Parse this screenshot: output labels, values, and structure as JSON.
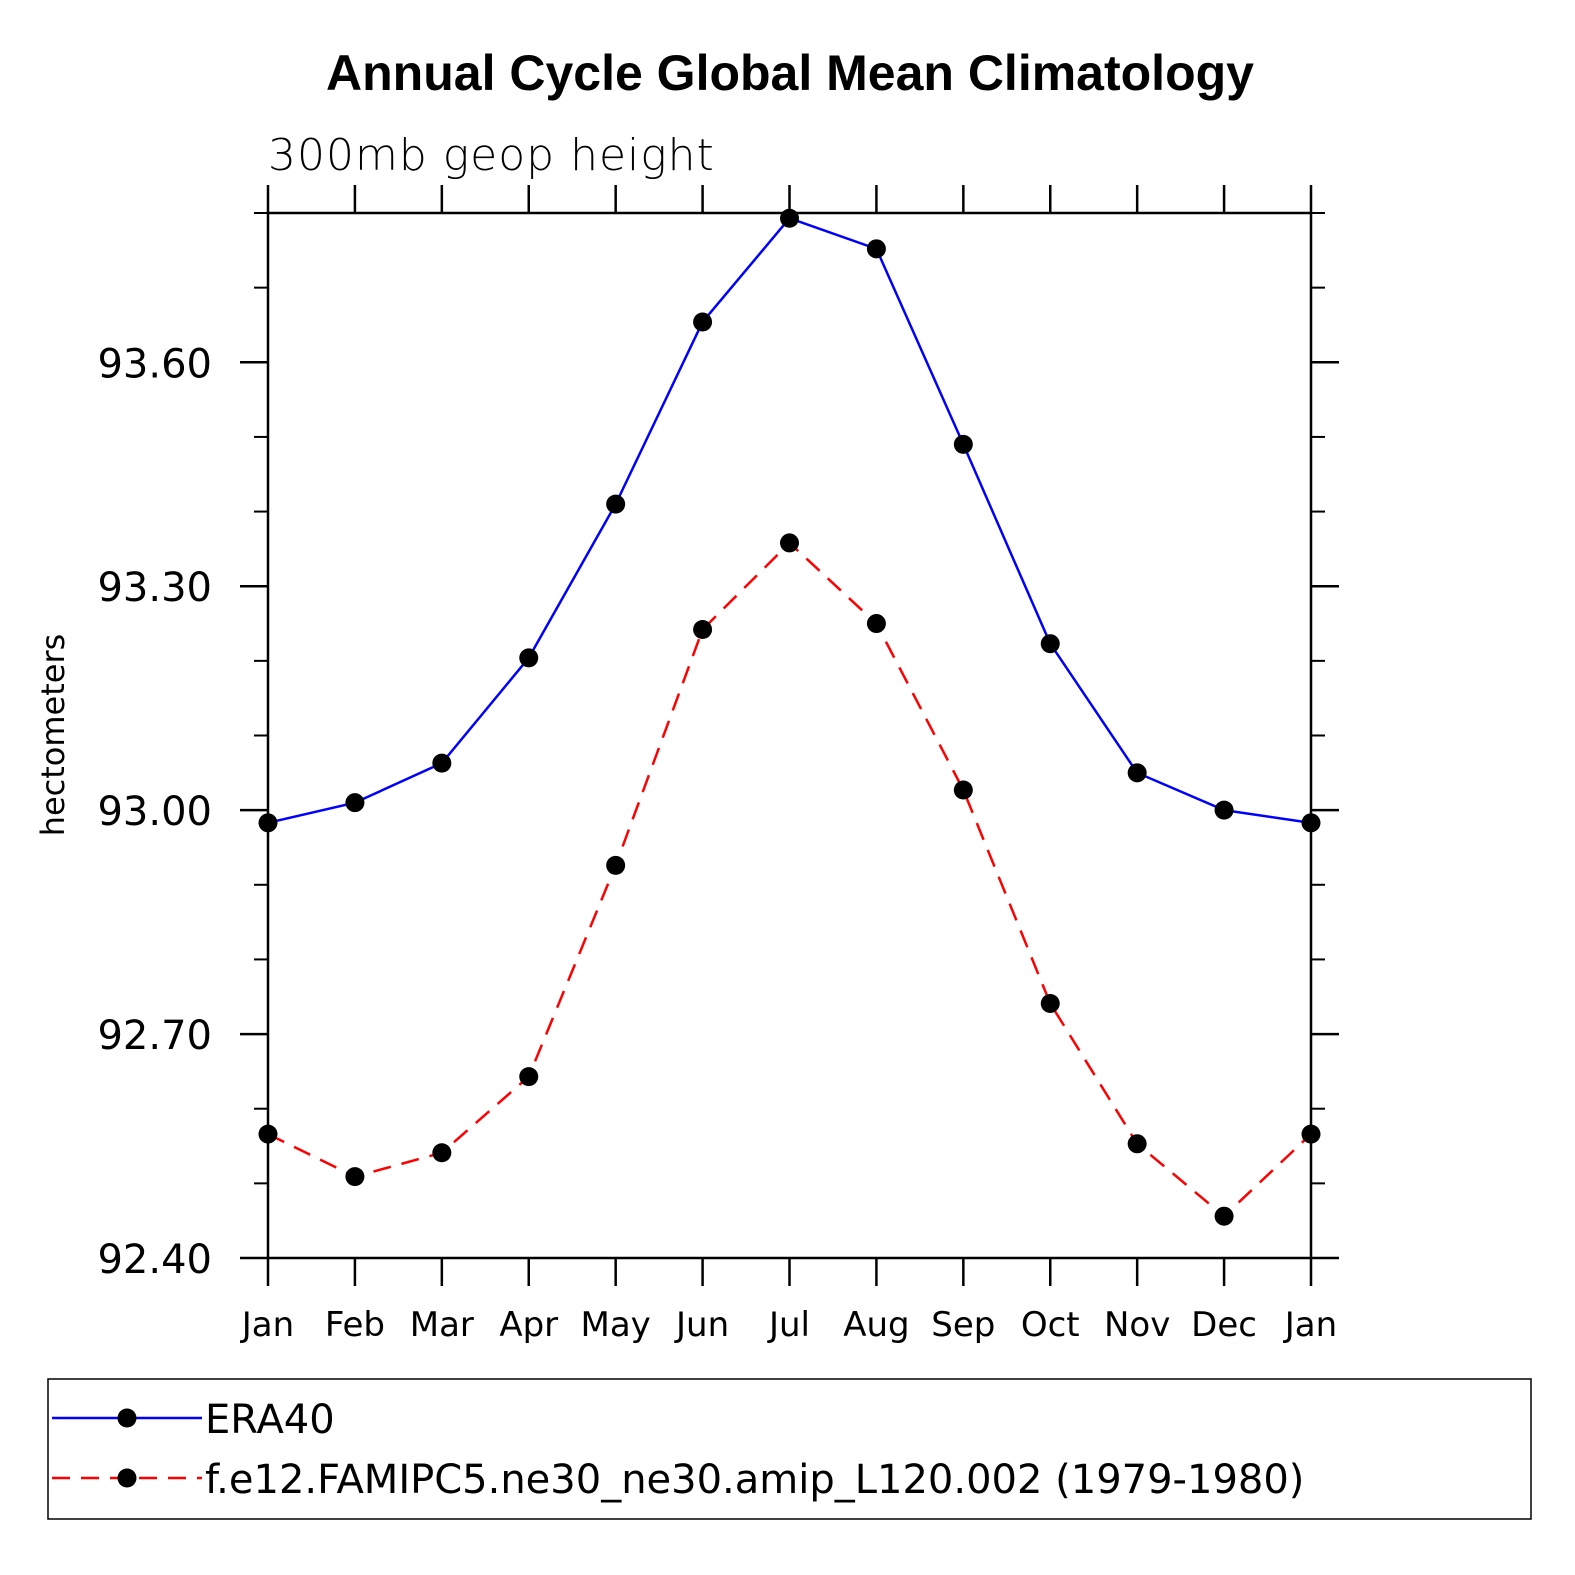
{
  "chart_data": {
    "type": "line",
    "title": "Annual Cycle Global Mean Climatology",
    "subtitle": "300mb geop height",
    "xlabel": "",
    "ylabel": "hectometers",
    "categories": [
      "Jan",
      "Feb",
      "Mar",
      "Apr",
      "May",
      "Jun",
      "Jul",
      "Aug",
      "Sep",
      "Oct",
      "Nov",
      "Dec",
      "Jan"
    ],
    "ylim": [
      92.4,
      93.8
    ],
    "yticks": [
      92.4,
      92.7,
      93.0,
      93.3,
      93.6
    ],
    "ytick_labels": [
      "92.40",
      "92.70",
      "93.00",
      "93.30",
      "93.60"
    ],
    "grid": false,
    "legend_position": "bottom",
    "series": [
      {
        "name": "ERA40",
        "color": "#0000ff",
        "line_style": "solid",
        "marker": "filled-circle",
        "values": [
          92.983,
          93.01,
          93.063,
          93.204,
          93.41,
          93.654,
          93.793,
          93.752,
          93.49,
          93.223,
          93.05,
          93.0,
          92.983
        ]
      },
      {
        "name": "f.e12.FAMIPC5.ne30_ne30.amip_L120.002 (1979-1980)",
        "color": "#ff0000",
        "line_style": "dashed",
        "marker": "filled-circle",
        "values": [
          92.566,
          92.509,
          92.541,
          92.643,
          92.926,
          93.242,
          93.358,
          93.25,
          93.027,
          92.741,
          92.553,
          92.456,
          92.566
        ]
      }
    ]
  }
}
